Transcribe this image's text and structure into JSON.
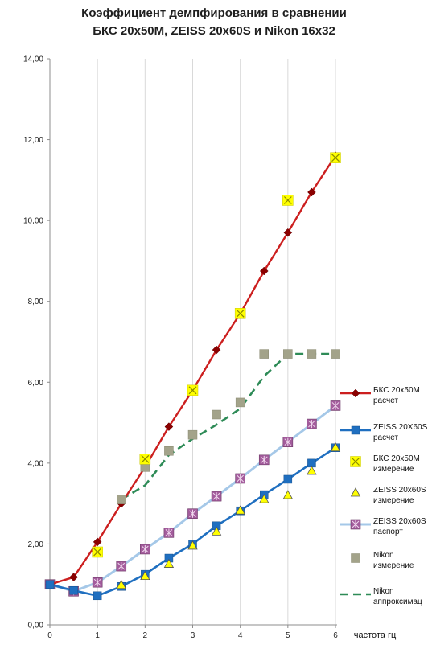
{
  "chart_data": {
    "type": "line",
    "title": "Коэффициент демпфирования в сравнении",
    "subtitle": "БКС 20х50М,  ZEISS 20x60S и Nikon 16x32",
    "xlabel": "частота гц",
    "ylabel": "",
    "xlim": [
      0,
      6
    ],
    "ylim": [
      0,
      14
    ],
    "x_ticks": [
      "0",
      "1",
      "2",
      "3",
      "4",
      "5",
      "6"
    ],
    "y_ticks": [
      "0,00",
      "2,00",
      "4,00",
      "6,00",
      "8,00",
      "10,00",
      "12,00",
      "14,00"
    ],
    "grid": "vertical-major",
    "legend_position": "right",
    "series": [
      {
        "name": "БКС 20х50М расчет",
        "style": "line-diamond",
        "color": "#cc1f1f",
        "x": [
          0,
          0.5,
          1,
          1.5,
          2,
          2.5,
          3,
          3.5,
          4,
          4.5,
          5,
          5.5,
          6
        ],
        "y": [
          1.0,
          1.18,
          2.05,
          3.0,
          3.9,
          4.9,
          5.8,
          6.8,
          7.7,
          8.75,
          9.7,
          10.7,
          11.6
        ]
      },
      {
        "name": "ZEISS 20X60S расчет",
        "style": "line-square",
        "color": "#1f6fc0",
        "x": [
          0,
          0.5,
          1,
          1.5,
          2,
          2.5,
          3,
          3.5,
          4,
          4.5,
          5,
          5.5,
          6
        ],
        "y": [
          1.0,
          0.85,
          0.72,
          0.95,
          1.25,
          1.65,
          2.0,
          2.45,
          2.82,
          3.22,
          3.6,
          4.0,
          4.38
        ]
      },
      {
        "name": "БКС 20х50М измерение",
        "style": "marker-yellow-x",
        "color": "#ffff00",
        "x": [
          1,
          2,
          3,
          4,
          5,
          6
        ],
        "y": [
          1.8,
          4.1,
          5.8,
          7.7,
          10.5,
          11.55
        ]
      },
      {
        "name": "ZEISS 20x60S измерение",
        "style": "marker-triangle",
        "color": "#ffff00",
        "x": [
          1.5,
          2,
          2.5,
          3,
          3.5,
          4,
          4.5,
          5,
          5.5,
          6
        ],
        "y": [
          0.98,
          1.2,
          1.5,
          1.95,
          2.3,
          2.82,
          3.1,
          3.2,
          3.8,
          4.38
        ]
      },
      {
        "name": "ZEISS 20x60S паспорт",
        "style": "line-purple-square",
        "color": "#a5c8e8",
        "x": [
          0,
          0.5,
          1,
          1.5,
          2,
          2.5,
          3,
          3.5,
          4,
          4.5,
          5,
          5.5,
          6
        ],
        "y": [
          1.0,
          0.83,
          1.05,
          1.45,
          1.87,
          2.28,
          2.75,
          3.18,
          3.62,
          4.08,
          4.52,
          4.97,
          5.42
        ]
      },
      {
        "name": "Nikon измерение",
        "style": "marker-gray-square",
        "color": "#a3a38a",
        "x": [
          1.5,
          2,
          2.5,
          3,
          3.5,
          4,
          4.5,
          5,
          5.5,
          6
        ],
        "y": [
          3.1,
          3.9,
          4.3,
          4.7,
          5.2,
          5.5,
          6.7,
          6.7,
          6.7,
          6.7
        ]
      },
      {
        "name": "Nikon аппроксимация",
        "style": "dashed",
        "color": "#2e8b57",
        "x": [
          1.5,
          2,
          2.5,
          3,
          3.5,
          4,
          4.5,
          5,
          5.5,
          6
        ],
        "y": [
          3.1,
          3.45,
          4.2,
          4.6,
          4.95,
          5.35,
          6.15,
          6.7,
          6.7,
          6.7
        ]
      }
    ],
    "legend": [
      {
        "line1": "БКС 20х50М",
        "line2": "расчет"
      },
      {
        "line1": "ZEISS 20X60S",
        "line2": "расчет"
      },
      {
        "line1": "БКС 20х50М",
        "line2": "измерение"
      },
      {
        "line1": "ZEISS 20x60S",
        "line2": "измерение"
      },
      {
        "line1": "ZEISS 20x60S",
        "line2": "паспорт"
      },
      {
        "line1": "Nikon",
        "line2": "измерение"
      },
      {
        "line1": "Nikon",
        "line2": "аппроксимац"
      }
    ]
  }
}
